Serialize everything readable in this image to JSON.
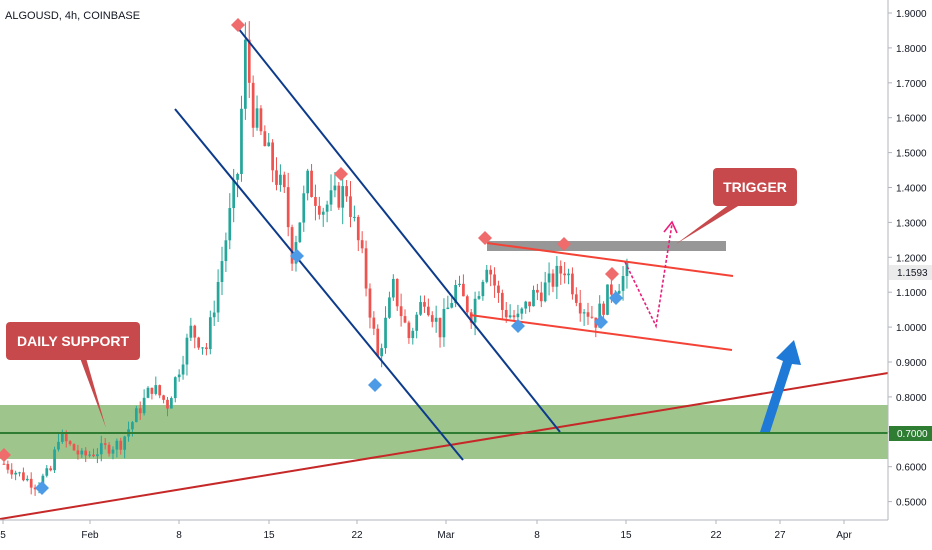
{
  "chart_data": {
    "type": "candlestick",
    "title": "ALGOUSD, 4h, COINBASE",
    "y_ticks": [
      "1.9000",
      "1.8000",
      "1.7000",
      "1.6000",
      "1.5000",
      "1.4000",
      "1.3000",
      "1.2000",
      "1.1000",
      "1.0000",
      "0.9000",
      "0.8000",
      "0.7000",
      "0.6000",
      "0.5000"
    ],
    "x_ticks": [
      "5",
      "Feb",
      "8",
      "15",
      "22",
      "Mar",
      "8",
      "15",
      "22",
      "27",
      "Apr"
    ],
    "ylim": [
      0.46,
      1.94
    ],
    "current_price": "1.1593",
    "support_level": "0.7000",
    "support_zone": [
      0.625,
      0.78
    ],
    "resistance_zone": [
      1.215,
      1.245
    ],
    "labels": {
      "daily_support": "DAILY SUPPORT",
      "trigger": "TRIGGER"
    },
    "colors": {
      "up": "#26a69a",
      "down": "#ef5350",
      "support_zone": "#6aa84f",
      "support_line": "#2e7d32",
      "channel": "#0d3b8c",
      "trendline": "#c62828",
      "range": "#f44336",
      "projection": "#e91e7a",
      "callout": "#c8494c",
      "arrow": "#1e7ad6"
    },
    "anchors": [
      {
        "t": 0,
        "p": 0.62
      },
      {
        "t": 8,
        "p": 0.56
      },
      {
        "t": 12,
        "p": 0.6
      },
      {
        "t": 14,
        "p": 0.7
      },
      {
        "t": 20,
        "p": 0.64
      },
      {
        "t": 30,
        "p": 0.68
      },
      {
        "t": 34,
        "p": 0.76
      },
      {
        "t": 38,
        "p": 0.84
      },
      {
        "t": 42,
        "p": 0.79
      },
      {
        "t": 48,
        "p": 1.0
      },
      {
        "t": 52,
        "p": 0.95
      },
      {
        "t": 56,
        "p": 1.2
      },
      {
        "t": 60,
        "p": 1.45
      },
      {
        "t": 62,
        "p": 1.8
      },
      {
        "t": 64,
        "p": 1.62
      },
      {
        "t": 66,
        "p": 1.55
      },
      {
        "t": 72,
        "p": 1.38
      },
      {
        "t": 74,
        "p": 1.22
      },
      {
        "t": 78,
        "p": 1.42
      },
      {
        "t": 82,
        "p": 1.35
      },
      {
        "t": 88,
        "p": 1.4
      },
      {
        "t": 92,
        "p": 1.2
      },
      {
        "t": 96,
        "p": 0.92
      },
      {
        "t": 100,
        "p": 1.12
      },
      {
        "t": 104,
        "p": 0.98
      },
      {
        "t": 108,
        "p": 1.1
      },
      {
        "t": 112,
        "p": 1.0
      },
      {
        "t": 116,
        "p": 1.12
      },
      {
        "t": 120,
        "p": 1.05
      },
      {
        "t": 124,
        "p": 1.2
      },
      {
        "t": 128,
        "p": 1.06
      },
      {
        "t": 132,
        "p": 1.03
      },
      {
        "t": 136,
        "p": 1.1
      },
      {
        "t": 140,
        "p": 1.13
      },
      {
        "t": 144,
        "p": 1.18
      },
      {
        "t": 148,
        "p": 1.08
      },
      {
        "t": 152,
        "p": 1.03
      },
      {
        "t": 156,
        "p": 1.12
      },
      {
        "t": 160,
        "p": 1.16
      }
    ]
  }
}
